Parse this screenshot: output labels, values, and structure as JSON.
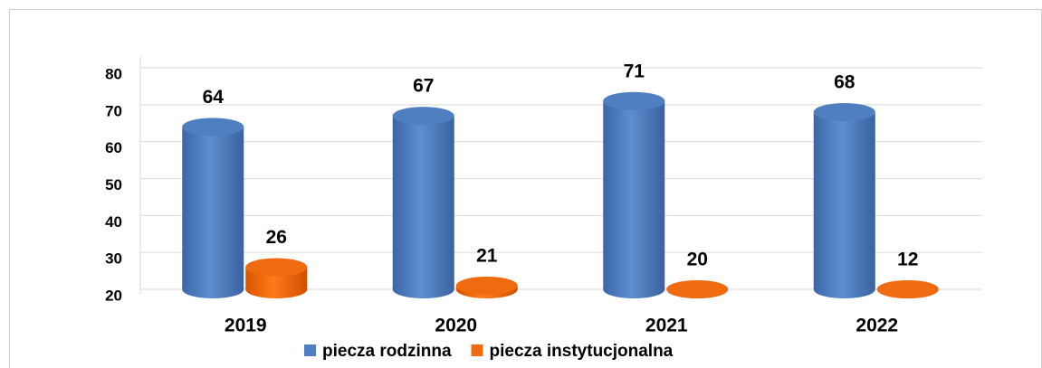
{
  "chart_data": {
    "type": "bar3d",
    "categories": [
      "2019",
      "2020",
      "2021",
      "2022"
    ],
    "series": [
      {
        "name": "piecza rodzinna",
        "color": "#4f7fc0",
        "values": [
          64,
          67,
          71,
          68
        ]
      },
      {
        "name": "piecza instytucjonalna",
        "color": "#f06a10",
        "values": [
          26,
          21,
          20,
          12
        ]
      }
    ],
    "ylim": [
      20,
      80
    ],
    "yticks": [
      20,
      30,
      40,
      50,
      60,
      70,
      80
    ],
    "grid": true,
    "legend": "bottom"
  }
}
